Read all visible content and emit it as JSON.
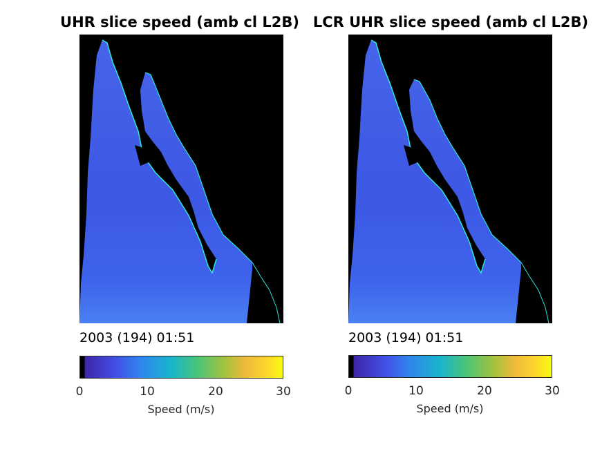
{
  "panels": [
    {
      "title": "UHR slice speed (amb cl L2B)",
      "timestamp": "2003 (194) 01:51",
      "colorbar": {
        "ticks": [
          "0",
          "10",
          "20",
          "30"
        ],
        "label": "Speed (m/s)"
      }
    },
    {
      "title": "LCR UHR slice speed (amb cl L2B)",
      "timestamp": "2003 (194) 01:51",
      "colorbar": {
        "ticks": [
          "0",
          "10",
          "20",
          "30"
        ],
        "label": "Speed (m/s)"
      }
    }
  ],
  "chart_data": [
    {
      "type": "heatmap",
      "title": "UHR slice speed (amb cl L2B)",
      "colorbar_label": "Speed (m/s)",
      "clim": [
        0,
        30
      ],
      "colormap": "parula",
      "typical_ocean_speed": [
        5,
        9
      ],
      "land_value": 0
    },
    {
      "type": "heatmap",
      "title": "LCR UHR slice speed (amb cl L2B)",
      "colorbar_label": "Speed (m/s)",
      "clim": [
        0,
        30
      ],
      "colormap": "parula",
      "typical_ocean_speed": [
        5,
        9
      ],
      "land_value": 0
    }
  ],
  "colors": {
    "land": "#000000",
    "ocean_low": "#3a4fe0",
    "ocean_mid": "#3f6ff0",
    "coast": "#2be8d8"
  }
}
